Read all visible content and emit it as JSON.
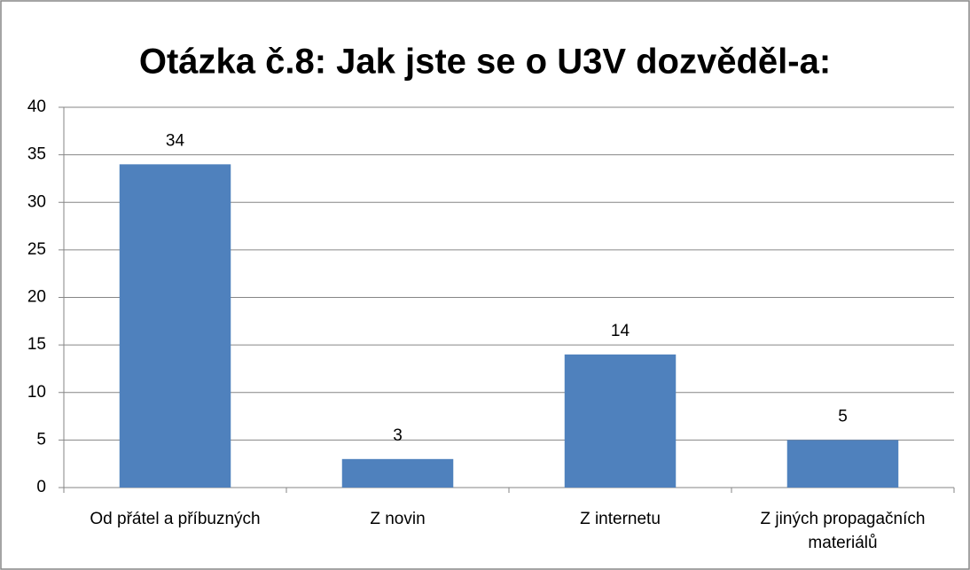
{
  "chart_data": {
    "type": "bar",
    "title": "Otázka č.8: Jak jste se o U3V dozvěděl-a:",
    "categories": [
      "Od přátel a příbuzných",
      "Z novin",
      "Z internetu",
      "Z jiných propagačních materiálů"
    ],
    "values": [
      34,
      3,
      14,
      5
    ],
    "color": "#4f81bd",
    "ylim": [
      0,
      40
    ],
    "yticks": [
      0,
      5,
      10,
      15,
      20,
      25,
      30,
      35,
      40
    ],
    "grid": true
  }
}
